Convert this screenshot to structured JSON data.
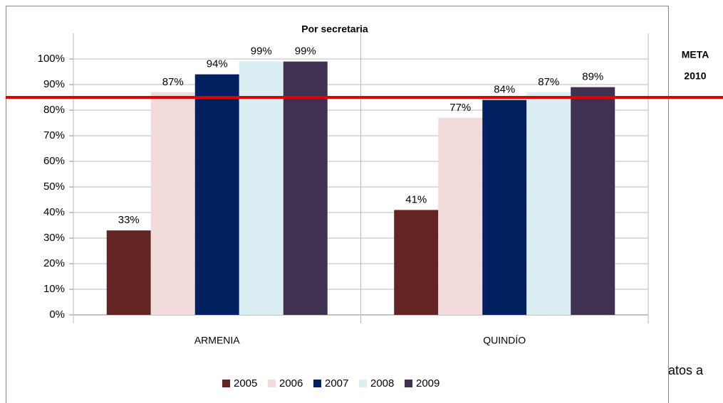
{
  "chart_data": {
    "type": "bar",
    "title": "Por secretaria",
    "categories": [
      "ARMENIA",
      "QUINDÍO"
    ],
    "series": [
      {
        "name": "2005",
        "color": "#632523",
        "values": [
          33,
          41
        ],
        "value_labels": [
          "33%",
          "41%"
        ]
      },
      {
        "name": "2006",
        "color": "#f2dcdb",
        "values": [
          87,
          77
        ],
        "value_labels": [
          "87%",
          "77%"
        ]
      },
      {
        "name": "2007",
        "color": "#002060",
        "values": [
          94,
          84
        ],
        "value_labels": [
          "94%",
          "84%"
        ]
      },
      {
        "name": "2008",
        "color": "#dbeef4",
        "values": [
          99,
          87
        ],
        "value_labels": [
          "99%",
          "87%"
        ]
      },
      {
        "name": "2009",
        "color": "#403152",
        "values": [
          99,
          89
        ],
        "value_labels": [
          "99%",
          "89%"
        ]
      }
    ],
    "ylim": [
      0,
      110
    ],
    "yticks": [
      {
        "value": 0,
        "label": "0%"
      },
      {
        "value": 10,
        "label": "10%"
      },
      {
        "value": 20,
        "label": "20%"
      },
      {
        "value": 30,
        "label": "30%"
      },
      {
        "value": 40,
        "label": "40%"
      },
      {
        "value": 50,
        "label": "50%"
      },
      {
        "value": 60,
        "label": "60%"
      },
      {
        "value": 70,
        "label": "70%"
      },
      {
        "value": 80,
        "label": "80%"
      },
      {
        "value": 90,
        "label": "90%"
      },
      {
        "value": 100,
        "label": "100%"
      }
    ],
    "grid": true,
    "legend": "bottom",
    "target": {
      "value": 85,
      "color": "#e00000",
      "label_lines": [
        "META",
        "2010"
      ]
    },
    "background_text": "Datos a"
  }
}
